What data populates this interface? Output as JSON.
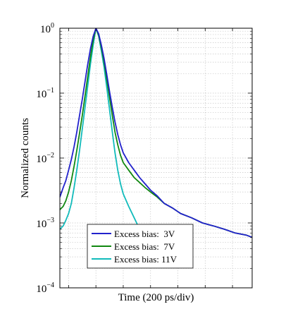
{
  "chart_data": {
    "type": "line",
    "title": "",
    "xlabel": "Time (200 ps/div)",
    "ylabel": "Normalized counts",
    "x_unit": "ps",
    "x_per_division_ps": 200,
    "x_range_ps": [
      -264,
      1144
    ],
    "ylim": [
      0.0001,
      1
    ],
    "yscale": "log",
    "y_ticks": [
      {
        "value": 1,
        "label": "10",
        "exp": "0"
      },
      {
        "value": 0.1,
        "label": "10",
        "exp": "−1"
      },
      {
        "value": 0.01,
        "label": "10",
        "exp": "−2"
      },
      {
        "value": 0.001,
        "label": "10",
        "exp": "−3"
      },
      {
        "value": 0.0001,
        "label": "10",
        "exp": "−4"
      }
    ],
    "grid": true,
    "legend_position": "bottom-center",
    "series": [
      {
        "name": "Excess bias:  3V",
        "color": "#2222cc",
        "points": [
          [
            -264,
            0.0025
          ],
          [
            -240,
            0.0035
          ],
          [
            -220,
            0.0045
          ],
          [
            -200,
            0.0065
          ],
          [
            -180,
            0.0095
          ],
          [
            -160,
            0.015
          ],
          [
            -140,
            0.025
          ],
          [
            -120,
            0.045
          ],
          [
            -100,
            0.08
          ],
          [
            -80,
            0.15
          ],
          [
            -60,
            0.28
          ],
          [
            -40,
            0.48
          ],
          [
            -20,
            0.75
          ],
          [
            0,
            1.0
          ],
          [
            20,
            0.82
          ],
          [
            40,
            0.55
          ],
          [
            60,
            0.34
          ],
          [
            80,
            0.19
          ],
          [
            100,
            0.105
          ],
          [
            120,
            0.06
          ],
          [
            140,
            0.036
          ],
          [
            160,
            0.023
          ],
          [
            180,
            0.016
          ],
          [
            200,
            0.012
          ],
          [
            240,
            0.0085
          ],
          [
            280,
            0.0065
          ],
          [
            320,
            0.005
          ],
          [
            360,
            0.004
          ],
          [
            400,
            0.0032
          ],
          [
            450,
            0.0026
          ],
          [
            500,
            0.002
          ],
          [
            560,
            0.0017
          ],
          [
            620,
            0.0014
          ],
          [
            700,
            0.0012
          ],
          [
            780,
            0.001
          ],
          [
            860,
            0.0009
          ],
          [
            940,
            0.0008
          ],
          [
            1020,
            0.0007
          ],
          [
            1100,
            0.00065
          ],
          [
            1144,
            0.0006
          ]
        ]
      },
      {
        "name": "Excess bias:  7V",
        "color": "#118811",
        "points": [
          [
            -264,
            0.0016
          ],
          [
            -240,
            0.0018
          ],
          [
            -220,
            0.0022
          ],
          [
            -200,
            0.003
          ],
          [
            -180,
            0.0045
          ],
          [
            -160,
            0.0075
          ],
          [
            -140,
            0.013
          ],
          [
            -120,
            0.024
          ],
          [
            -100,
            0.045
          ],
          [
            -80,
            0.09
          ],
          [
            -60,
            0.18
          ],
          [
            -40,
            0.36
          ],
          [
            -20,
            0.65
          ],
          [
            0,
            1.0
          ],
          [
            20,
            0.78
          ],
          [
            40,
            0.5
          ],
          [
            60,
            0.3
          ],
          [
            80,
            0.16
          ],
          [
            100,
            0.085
          ],
          [
            120,
            0.045
          ],
          [
            140,
            0.025
          ],
          [
            160,
            0.016
          ],
          [
            180,
            0.011
          ],
          [
            200,
            0.0085
          ],
          [
            240,
            0.0065
          ],
          [
            280,
            0.005
          ],
          [
            320,
            0.0042
          ],
          [
            360,
            0.0035
          ],
          [
            400,
            0.003
          ],
          [
            450,
            0.0025
          ],
          [
            500,
            0.002
          ],
          [
            560,
            0.0017
          ],
          [
            620,
            0.0014
          ],
          [
            700,
            0.0012
          ],
          [
            780,
            0.001
          ],
          [
            860,
            0.0009
          ],
          [
            940,
            0.0008
          ],
          [
            1020,
            0.0007
          ],
          [
            1100,
            0.00065
          ],
          [
            1144,
            0.0006
          ]
        ]
      },
      {
        "name": "Excess bias: 11V",
        "color": "#11bbbb",
        "points": [
          [
            -264,
            0.0008
          ],
          [
            -240,
            0.0009
          ],
          [
            -220,
            0.0011
          ],
          [
            -200,
            0.0014
          ],
          [
            -180,
            0.002
          ],
          [
            -160,
            0.0035
          ],
          [
            -140,
            0.0065
          ],
          [
            -120,
            0.013
          ],
          [
            -100,
            0.028
          ],
          [
            -80,
            0.06
          ],
          [
            -60,
            0.13
          ],
          [
            -40,
            0.28
          ],
          [
            -20,
            0.55
          ],
          [
            0,
            1.0
          ],
          [
            20,
            0.75
          ],
          [
            40,
            0.45
          ],
          [
            60,
            0.25
          ],
          [
            80,
            0.12
          ],
          [
            100,
            0.055
          ],
          [
            120,
            0.025
          ],
          [
            140,
            0.012
          ],
          [
            160,
            0.0065
          ],
          [
            180,
            0.004
          ],
          [
            200,
            0.0028
          ],
          [
            240,
            0.0018
          ],
          [
            280,
            0.0012
          ],
          [
            320,
            0.0008
          ],
          [
            360,
            0.0006
          ],
          [
            400,
            0.00045
          ],
          [
            450,
            0.00035
          ]
        ]
      }
    ]
  }
}
